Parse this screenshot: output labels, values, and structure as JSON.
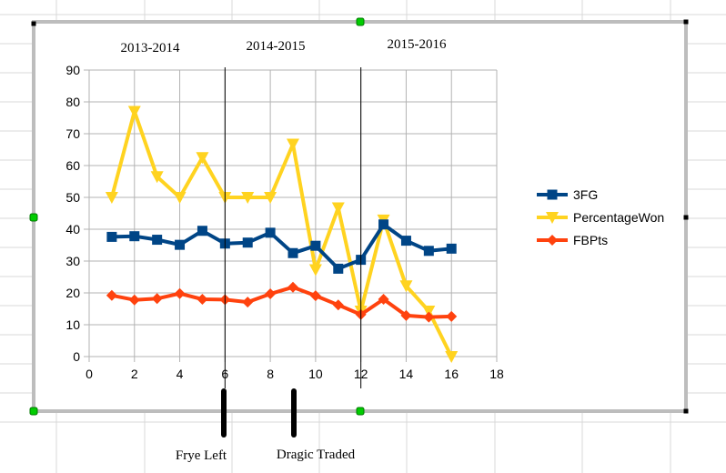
{
  "chart_data": {
    "type": "line",
    "x": [
      1,
      2,
      3,
      4,
      5,
      6,
      7,
      8,
      9,
      10,
      11,
      12,
      13,
      14,
      15,
      16
    ],
    "series": [
      {
        "name": "3FG",
        "color": "#004586",
        "marker": "square",
        "values": [
          37.6,
          37.8,
          36.7,
          35.1,
          39.5,
          35.5,
          35.8,
          38.9,
          32.5,
          34.8,
          27.6,
          30.4,
          41.5,
          36.4,
          33.2,
          33.9
        ]
      },
      {
        "name": "PercentageWon",
        "color": "#FFD320",
        "marker": "triangle-down",
        "values": [
          50,
          77,
          56.5,
          50,
          62.5,
          50,
          50,
          50,
          66.7,
          27.3,
          46.7,
          14.3,
          42.9,
          22.2,
          14.3,
          0
        ]
      },
      {
        "name": "FBPts",
        "color": "#FF420E",
        "marker": "diamond",
        "values": [
          19.2,
          17.8,
          18.2,
          19.8,
          18,
          17.9,
          17.1,
          19.7,
          21.8,
          19.1,
          16.2,
          13.2,
          18,
          12.9,
          12.4,
          12.6
        ]
      }
    ],
    "xlim": [
      0,
      18
    ],
    "xticks": [
      "0",
      "2",
      "4",
      "6",
      "8",
      "10",
      "12",
      "14",
      "16",
      "18"
    ],
    "ylim": [
      0,
      90
    ],
    "yticks": [
      "0",
      "10",
      "20",
      "30",
      "40",
      "50",
      "60",
      "70",
      "80",
      "90"
    ],
    "grid": true,
    "legend_position": "right",
    "season_dividers": [
      6,
      12
    ],
    "season_labels": [
      "2013-2014",
      "2014-2015",
      "2015-2016"
    ],
    "annotations": [
      {
        "label": "Frye Left",
        "x": 6
      },
      {
        "label": "Dragic Traded",
        "x": 9
      }
    ]
  },
  "colors": {
    "grid": "#b3b3b3",
    "axis": "#b3b3b3",
    "frame": "#bdbdbd",
    "sheet_grid": "#d9d9d9",
    "handle_green": "#00cc00",
    "divider": "#000000"
  }
}
